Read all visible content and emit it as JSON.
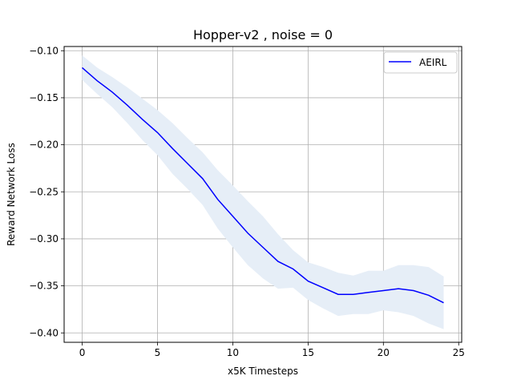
{
  "chart_data": {
    "type": "line",
    "title": "Hopper-v2 , noise = 0",
    "xlabel": "x5K Timesteps",
    "ylabel": "Reward Network Loss",
    "xlim": [
      -1.2,
      25.2
    ],
    "ylim": [
      -0.41,
      -0.0955
    ],
    "xticks": [
      0,
      5,
      10,
      15,
      20,
      25
    ],
    "xtick_labels": [
      "0",
      "5",
      "10",
      "15",
      "20",
      "25"
    ],
    "yticks": [
      -0.4,
      -0.35,
      -0.3,
      -0.25,
      -0.2,
      -0.15,
      -0.1
    ],
    "ytick_labels": [
      "−0.40",
      "−0.35",
      "−0.30",
      "−0.25",
      "−0.20",
      "−0.15",
      "−0.10"
    ],
    "grid": true,
    "legend_position": "top-right",
    "series": [
      {
        "name": "AEIRL",
        "color": "#0000ff",
        "band_color": "#e6eef7",
        "x": [
          0,
          1,
          2,
          3,
          4,
          5,
          6,
          7,
          8,
          9,
          10,
          11,
          12,
          13,
          14,
          15,
          16,
          17,
          18,
          19,
          20,
          21,
          22,
          23,
          24
        ],
        "y": [
          -0.118,
          -0.132,
          -0.144,
          -0.158,
          -0.173,
          -0.187,
          -0.204,
          -0.22,
          -0.236,
          -0.258,
          -0.276,
          -0.294,
          -0.309,
          -0.324,
          -0.332,
          -0.345,
          -0.352,
          -0.359,
          -0.359,
          -0.357,
          -0.355,
          -0.353,
          -0.355,
          -0.36,
          -0.368
        ],
        "upper": [
          -0.105,
          -0.118,
          -0.128,
          -0.139,
          -0.151,
          -0.163,
          -0.177,
          -0.193,
          -0.208,
          -0.227,
          -0.243,
          -0.26,
          -0.276,
          -0.295,
          -0.312,
          -0.325,
          -0.33,
          -0.336,
          -0.339,
          -0.334,
          -0.334,
          -0.328,
          -0.328,
          -0.33,
          -0.34
        ],
        "lower": [
          -0.131,
          -0.146,
          -0.16,
          -0.177,
          -0.195,
          -0.211,
          -0.231,
          -0.247,
          -0.264,
          -0.289,
          -0.309,
          -0.328,
          -0.342,
          -0.353,
          -0.352,
          -0.365,
          -0.374,
          -0.382,
          -0.38,
          -0.38,
          -0.376,
          -0.378,
          -0.382,
          -0.39,
          -0.396
        ]
      }
    ]
  }
}
